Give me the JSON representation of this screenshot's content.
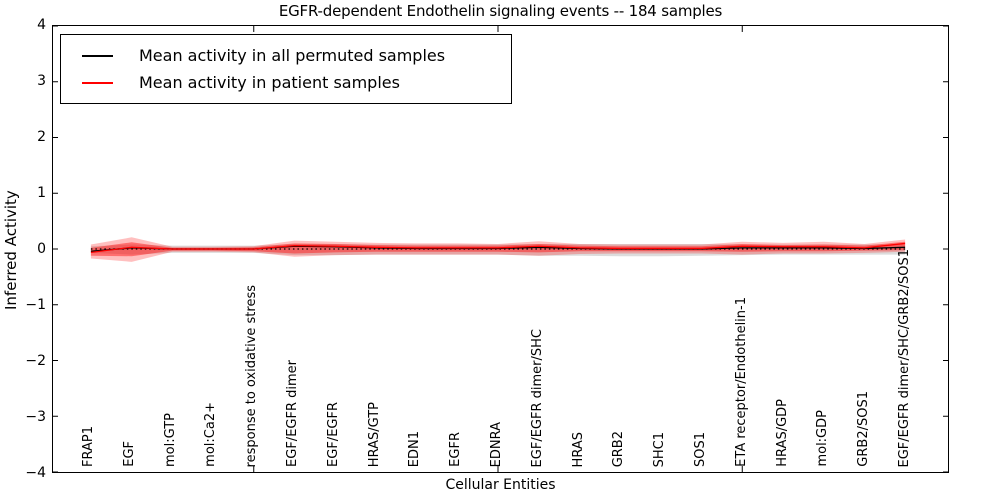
{
  "chart_data": {
    "type": "line",
    "title": "EGFR-dependent Endothelin signaling events -- 184 samples",
    "xlabel": "Cellular Entities",
    "ylabel": "Inferred Activity",
    "ylim": [
      -4,
      4
    ],
    "ytick_values": [
      4,
      3,
      2,
      1,
      0,
      -1,
      -2,
      -3,
      -4
    ],
    "ytick_labels": [
      "4",
      "3",
      "2",
      "1",
      "0",
      "−1",
      "−2",
      "−3",
      "−4"
    ],
    "xtick_points": [
      5,
      11,
      17
    ],
    "grid": false,
    "legend_position": "upper-left",
    "categories": [
      "FRAP1",
      "EGF",
      "mol:GTP",
      "mol:Ca2+",
      "response to oxidative stress",
      "EGF/EGFR dimer",
      "EGF/EGFR",
      "HRAS/GTP",
      "EDN1",
      "EGFR",
      "EDNRA",
      "EGF/EGFR dimer/SHC",
      "HRAS",
      "GRB2",
      "SHC1",
      "SOS1",
      "ETA receptor/Endothelin-1",
      "HRAS/GDP",
      "mol:GDP",
      "GRB2/SOS1",
      "EGF/EGFR dimer/SHC/GRB2/SOS1"
    ],
    "legend": [
      {
        "label": "Mean activity in all permuted samples",
        "color": "#000000"
      },
      {
        "label": "Mean activity in patient samples",
        "color": "#ff0000"
      }
    ],
    "series": [
      {
        "name": "Mean activity in all permuted samples",
        "color": "#000000",
        "values": [
          -0.04,
          0.02,
          0.0,
          0.0,
          0.0,
          0.05,
          0.04,
          0.02,
          0.01,
          0.01,
          0.01,
          0.03,
          0.01,
          0.0,
          0.0,
          0.0,
          0.02,
          0.02,
          0.02,
          0.01,
          0.03
        ]
      },
      {
        "name": "Mean activity in patient samples",
        "color": "#ff0000",
        "values": [
          -0.06,
          0.03,
          0.0,
          0.0,
          0.0,
          0.06,
          0.05,
          0.03,
          0.02,
          0.02,
          0.02,
          0.05,
          0.02,
          0.01,
          0.01,
          0.01,
          0.05,
          0.04,
          0.04,
          0.02,
          0.1
        ]
      }
    ],
    "bands": [
      {
        "name": "permuted-sample-range",
        "color": "rgba(128,128,128,0.28)",
        "upper": [
          0.05,
          0.08,
          0.06,
          0.06,
          0.06,
          0.09,
          0.09,
          0.08,
          0.08,
          0.08,
          0.08,
          0.09,
          0.09,
          0.09,
          0.09,
          0.09,
          0.08,
          0.08,
          0.08,
          0.08,
          0.08
        ],
        "lower": [
          -0.07,
          -0.1,
          -0.07,
          -0.07,
          -0.07,
          -0.11,
          -0.11,
          -0.1,
          -0.1,
          -0.1,
          -0.1,
          -0.12,
          -0.12,
          -0.13,
          -0.13,
          -0.12,
          -0.11,
          -0.1,
          -0.1,
          -0.1,
          -0.1
        ]
      },
      {
        "name": "patient-sample-outer-band",
        "color": "rgba(255,0,0,0.25)",
        "upper": [
          0.08,
          0.21,
          0.04,
          0.04,
          0.05,
          0.15,
          0.13,
          0.11,
          0.1,
          0.1,
          0.09,
          0.14,
          0.09,
          0.08,
          0.08,
          0.08,
          0.13,
          0.11,
          0.13,
          0.09,
          0.17
        ],
        "lower": [
          -0.17,
          -0.23,
          -0.05,
          -0.05,
          -0.06,
          -0.14,
          -0.11,
          -0.1,
          -0.1,
          -0.1,
          -0.1,
          -0.12,
          -0.09,
          -0.08,
          -0.08,
          -0.08,
          -0.1,
          -0.08,
          -0.08,
          -0.07,
          -0.05
        ]
      },
      {
        "name": "patient-sample-inner-band",
        "color": "rgba(255,0,0,0.42)",
        "upper": [
          0.02,
          0.12,
          0.02,
          0.02,
          0.03,
          0.1,
          0.09,
          0.07,
          0.06,
          0.06,
          0.06,
          0.09,
          0.06,
          0.05,
          0.05,
          0.05,
          0.09,
          0.07,
          0.08,
          0.06,
          0.13
        ],
        "lower": [
          -0.12,
          -0.13,
          -0.03,
          -0.03,
          -0.04,
          -0.08,
          -0.06,
          -0.05,
          -0.05,
          -0.05,
          -0.05,
          -0.06,
          -0.04,
          -0.04,
          -0.04,
          -0.04,
          -0.05,
          -0.04,
          -0.04,
          -0.03,
          -0.02
        ]
      }
    ],
    "zero_line": 0
  }
}
